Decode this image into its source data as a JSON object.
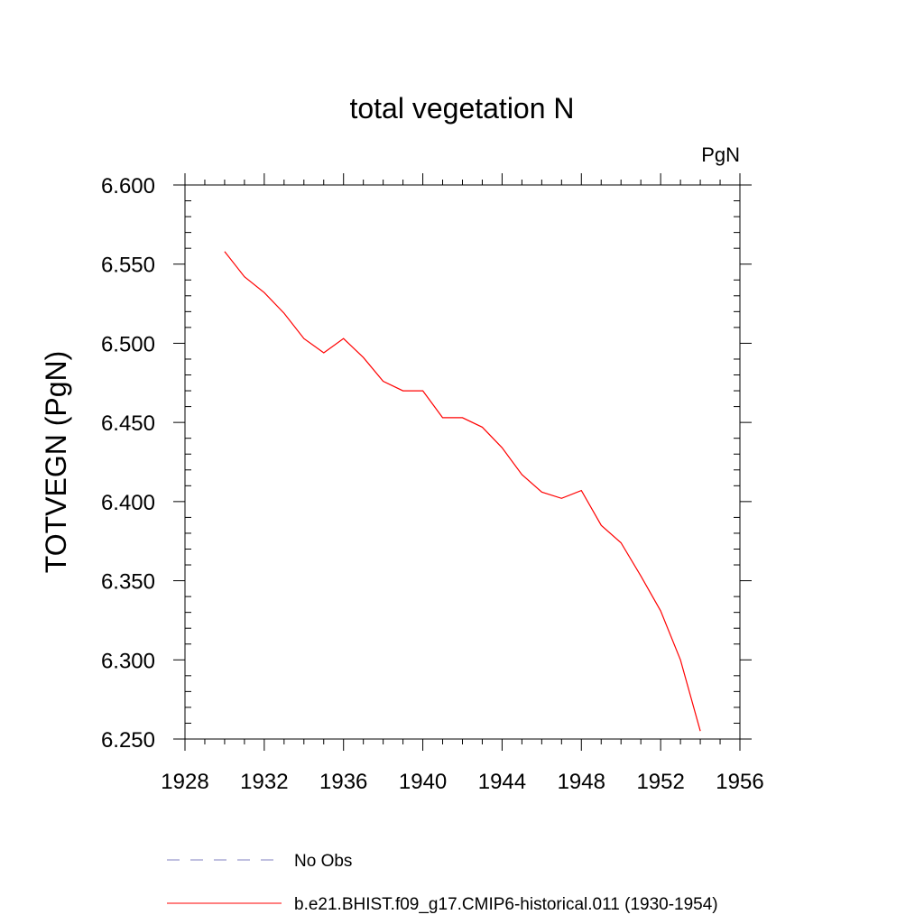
{
  "chart_data": {
    "type": "line",
    "title": "total vegetation N",
    "ylabel": "TOTVEGN  (PgN)",
    "units_label": "PgN",
    "xlim": [
      1928,
      1956
    ],
    "ylim": [
      6.25,
      6.6
    ],
    "x_ticks": [
      "1928",
      "1932",
      "1936",
      "1940",
      "1944",
      "1948",
      "1952",
      "1956"
    ],
    "y_ticks": [
      "6.250",
      "6.300",
      "6.350",
      "6.400",
      "6.450",
      "6.500",
      "6.550",
      "6.600"
    ],
    "grid": false,
    "legend_position": "bottom",
    "series": [
      {
        "name": "b.e21.BHIST.f09_g17.CMIP6-historical.011 (1930-1954)",
        "color": "#ff0000",
        "dash": "solid",
        "x": [
          1930,
          1931,
          1932,
          1933,
          1934,
          1935,
          1936,
          1937,
          1938,
          1939,
          1940,
          1941,
          1942,
          1943,
          1944,
          1945,
          1946,
          1947,
          1948,
          1949,
          1950,
          1951,
          1952,
          1953,
          1954
        ],
        "y": [
          6.558,
          6.542,
          6.532,
          6.519,
          6.503,
          6.494,
          6.503,
          6.491,
          6.476,
          6.47,
          6.47,
          6.453,
          6.453,
          6.447,
          6.434,
          6.417,
          6.406,
          6.402,
          6.407,
          6.385,
          6.374,
          6.353,
          6.331,
          6.3,
          6.255
        ]
      }
    ],
    "legend": [
      {
        "label": "No Obs",
        "color": "#8080c0",
        "dash": "dashed"
      },
      {
        "label": "b.e21.BHIST.f09_g17.CMIP6-historical.011 (1930-1954)",
        "color": "#ff0000",
        "dash": "solid"
      }
    ]
  }
}
